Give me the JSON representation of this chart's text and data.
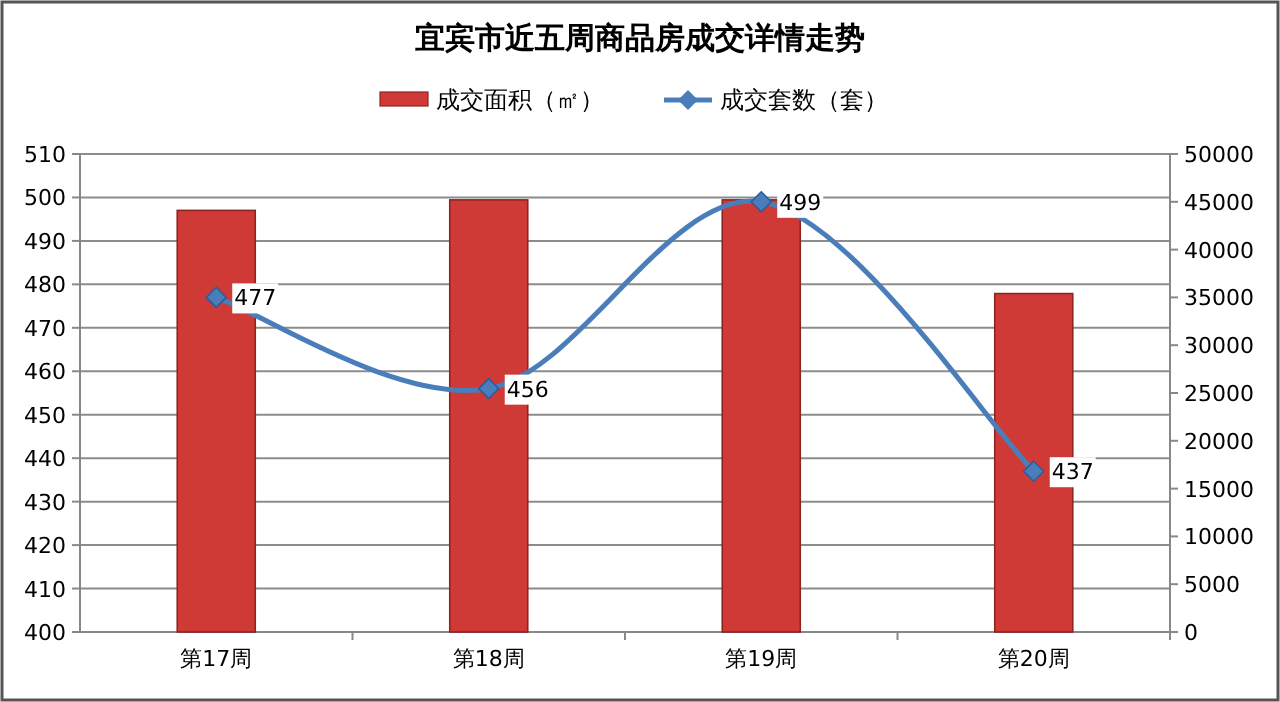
{
  "chart_data": {
    "type": "bar",
    "title": "宜宾市近五周商品房成交详情走势",
    "categories": [
      "第17周",
      "第18周",
      "第19周",
      "第20周"
    ],
    "series": [
      {
        "name": "成交面积（㎡）",
        "axis": "y2",
        "color": "#d03a36",
        "values": [
          44100,
          45200,
          45200,
          35400
        ]
      },
      {
        "name": "成交套数（套）",
        "type": "line",
        "axis": "y",
        "color": "#4a7ebb",
        "marker": "diamond",
        "values": [
          477,
          456,
          499,
          437
        ],
        "value_labels": [
          "477",
          "456",
          "499",
          "437"
        ]
      }
    ],
    "ylim": [
      400,
      510
    ],
    "yticks": [
      400,
      410,
      420,
      430,
      440,
      450,
      460,
      470,
      480,
      490,
      500,
      510
    ],
    "y2lim": [
      0,
      50000
    ],
    "y2ticks": [
      0,
      5000,
      10000,
      15000,
      20000,
      25000,
      30000,
      35000,
      40000,
      45000,
      50000
    ],
    "grid": "y",
    "legend": "top"
  }
}
